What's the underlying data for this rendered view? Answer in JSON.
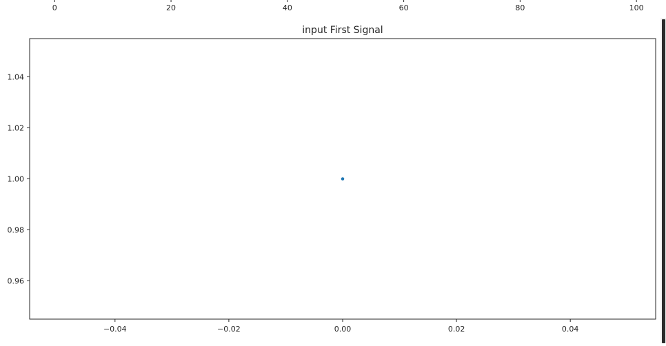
{
  "top_axis": {
    "ticks": [
      "0",
      "20",
      "40",
      "60",
      "80",
      "100"
    ],
    "values": [
      0,
      20,
      40,
      60,
      80,
      100
    ],
    "xlim": [
      -4.3,
      103.3
    ]
  },
  "chart_data": {
    "type": "scatter",
    "title": "input First Signal",
    "xlabel": "",
    "ylabel": "",
    "x": [
      0.0
    ],
    "y": [
      1.0
    ],
    "xlim": [
      -0.055,
      0.055
    ],
    "ylim": [
      0.945,
      1.055
    ],
    "xticks": [
      -0.04,
      -0.02,
      0.0,
      0.02,
      0.04
    ],
    "xtick_labels": [
      "−0.04",
      "−0.02",
      "0.00",
      "0.02",
      "0.04"
    ],
    "yticks": [
      0.96,
      0.98,
      1.0,
      1.02,
      1.04
    ],
    "ytick_labels": [
      "0.96",
      "0.98",
      "1.00",
      "1.02",
      "1.04"
    ],
    "grid": false,
    "marker_color": "#1f77b4"
  }
}
